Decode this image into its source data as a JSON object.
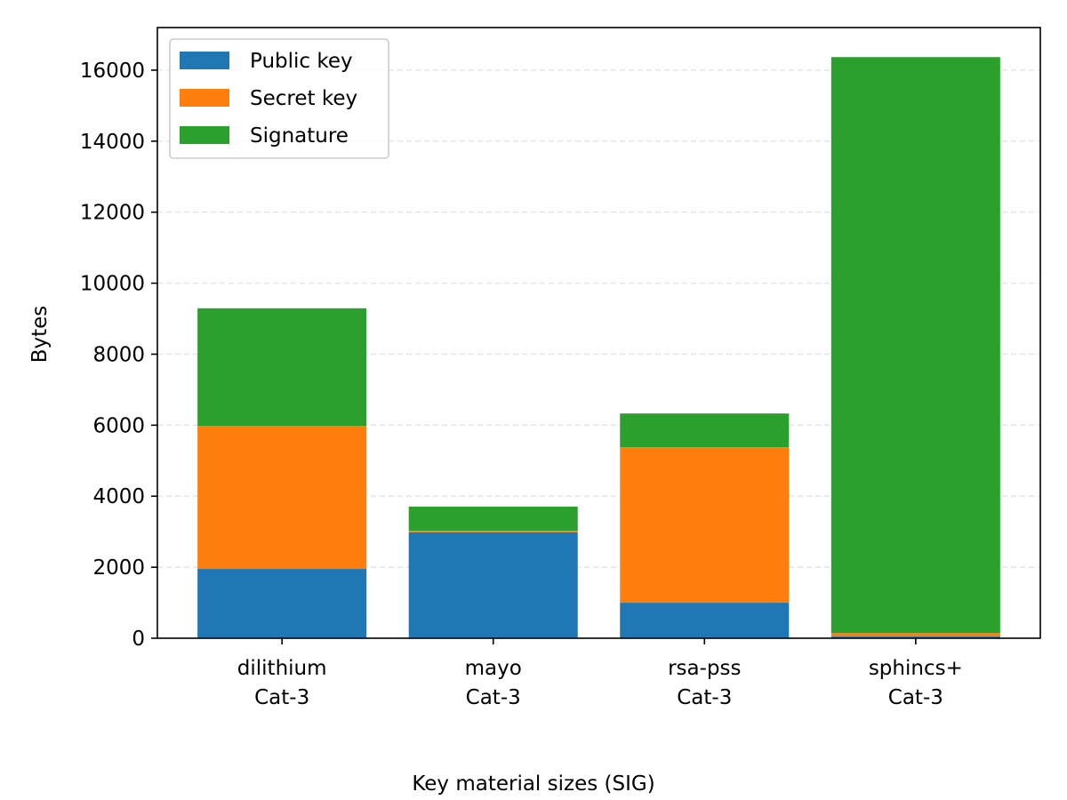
{
  "chart_data": {
    "type": "bar",
    "stacked": true,
    "title": "",
    "xlabel": "Key material sizes (SIG)",
    "ylabel": "Bytes",
    "categories": [
      [
        "dilithium",
        "Cat-3"
      ],
      [
        "mayo",
        "Cat-3"
      ],
      [
        "rsa-pss",
        "Cat-3"
      ],
      [
        "sphincs+",
        "Cat-3"
      ]
    ],
    "series": [
      {
        "name": "Public key",
        "color": "#1f77b4",
        "values": [
          1952,
          2986,
          1000,
          48
        ]
      },
      {
        "name": "Secret key",
        "color": "#ff7f0e",
        "values": [
          4032,
          40,
          4380,
          96
        ]
      },
      {
        "name": "Signature",
        "color": "#2ca02c",
        "values": [
          3309,
          681,
          950,
          16224
        ]
      }
    ],
    "ylim": [
      0,
      17200
    ],
    "yticks": [
      0,
      2000,
      4000,
      6000,
      8000,
      10000,
      12000,
      14000,
      16000
    ],
    "grid": "y-dashed",
    "legend_position": "top-left"
  }
}
